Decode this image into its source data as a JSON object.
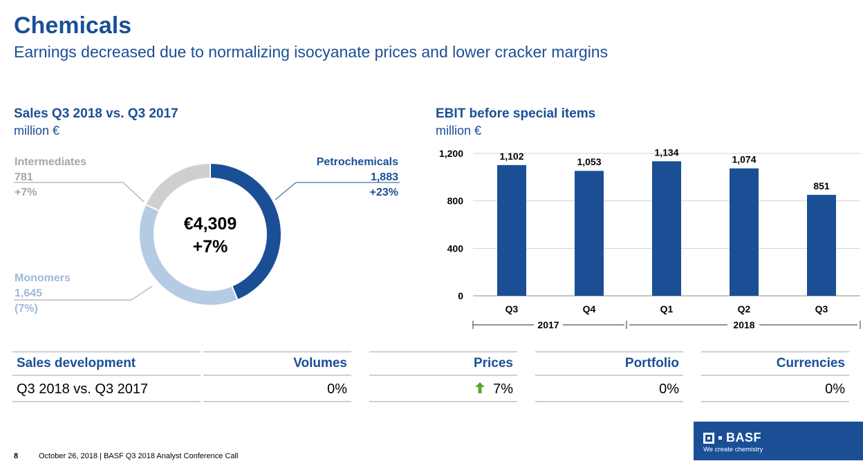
{
  "header": {
    "title": "Chemicals",
    "subtitle": "Earnings decreased due to normalizing isocyanate prices and lower cracker margins"
  },
  "sales": {
    "title": "Sales Q3 2018 vs. Q3 2017",
    "unit": "million €",
    "center_value": "€4,309",
    "center_change": "+7%",
    "segments": [
      {
        "name": "Petrochemicals",
        "value": "1,883",
        "change": "+23%",
        "amount": 1883,
        "color": "#1a4f96"
      },
      {
        "name": "Monomers",
        "value": "1,645",
        "change": "(7%)",
        "amount": 1645,
        "color": "#b5cbe3"
      },
      {
        "name": "Intermediates",
        "value": "781",
        "change": "+7%",
        "amount": 781,
        "color": "#cfcfcf"
      }
    ]
  },
  "ebit": {
    "title": "EBIT before special items",
    "unit": "million €",
    "year_2017": "2017",
    "year_2018": "2018"
  },
  "chart_data": {
    "type": "bar",
    "categories": [
      "Q3",
      "Q4",
      "Q1",
      "Q2",
      "Q3"
    ],
    "values": [
      1102,
      1053,
      1134,
      1074,
      851
    ],
    "value_labels": [
      "1,102",
      "1,053",
      "1,134",
      "1,074",
      "851"
    ],
    "yticks": [
      0,
      400,
      800,
      1200
    ],
    "ytick_labels": [
      "0",
      "400",
      "800",
      "1,200"
    ],
    "ylim": [
      0,
      1200
    ],
    "grid": true,
    "color": "#1a4f96"
  },
  "sales_development": {
    "headers": [
      "Sales development",
      "Volumes",
      "Prices",
      "Portfolio",
      "Currencies"
    ],
    "row_label": "Q3 2018 vs. Q3 2017",
    "volumes": "0%",
    "prices": "7%",
    "prices_icon": "up-arrow-icon",
    "portfolio": "0%",
    "currencies": "0%"
  },
  "footer": {
    "page": "8",
    "text": "October 26, 2018  |  BASF Q3 2018 Analyst Conference Call"
  },
  "logo": {
    "name": "BASF",
    "tagline": "We create chemistry"
  }
}
